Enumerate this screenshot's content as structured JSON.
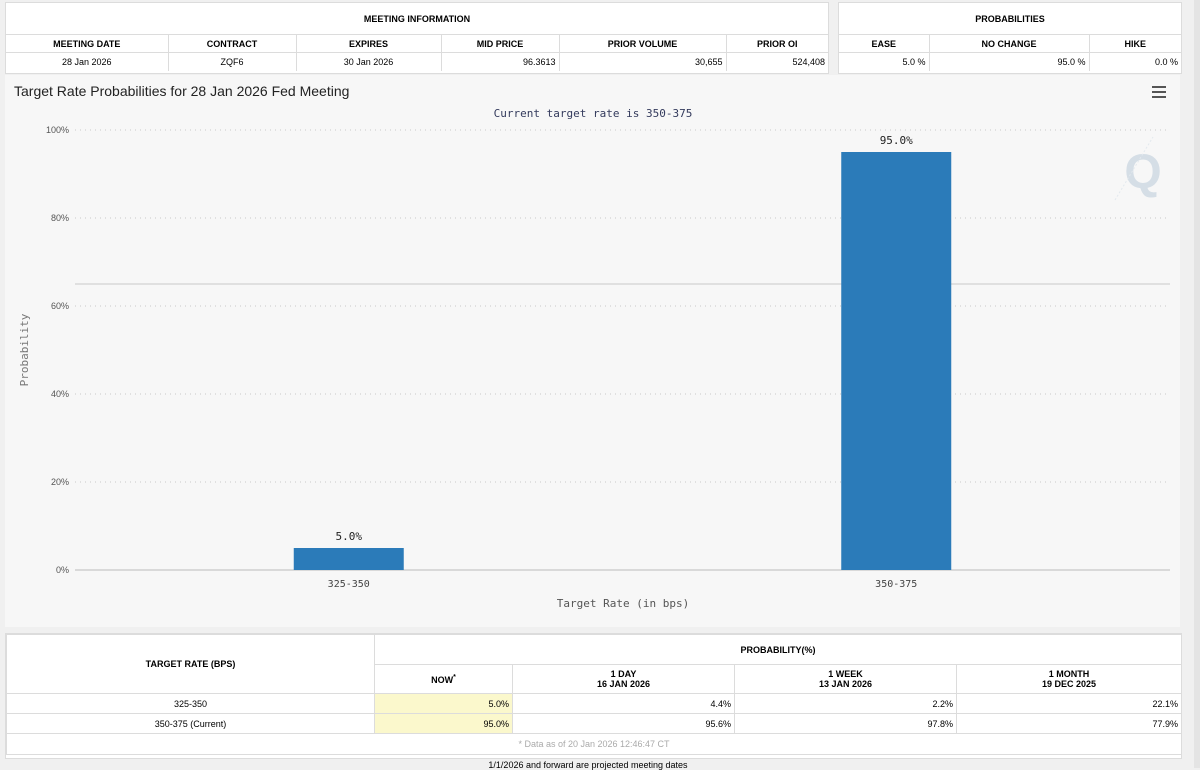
{
  "meeting": {
    "group_header": "MEETING INFORMATION",
    "columns": [
      "MEETING DATE",
      "CONTRACT",
      "EXPIRES",
      "MID PRICE",
      "PRIOR VOLUME",
      "PRIOR OI"
    ],
    "row": [
      "28 Jan 2026",
      "ZQF6",
      "30 Jan 2026",
      "96.3613",
      "30,655",
      "524,408"
    ]
  },
  "probabilities": {
    "group_header": "PROBABILITIES",
    "columns": [
      "EASE",
      "NO CHANGE",
      "HIKE"
    ],
    "row": [
      "5.0 %",
      "95.0 %",
      "0.0 %"
    ]
  },
  "chart_data": {
    "type": "bar",
    "title": "Target Rate Probabilities for 28 Jan 2026 Fed Meeting",
    "subtitle": "Current target rate is 350-375",
    "xlabel": "Target Rate (in bps)",
    "ylabel": "Probability",
    "categories": [
      "325-350",
      "350-375"
    ],
    "values": [
      5.0,
      95.0
    ],
    "data_labels": [
      "5.0%",
      "95.0%"
    ],
    "ylim": [
      0,
      100
    ],
    "yticks": [
      0,
      20,
      40,
      60,
      80,
      100
    ],
    "ytick_labels": [
      "0%",
      "20%",
      "40%",
      "60%",
      "80%",
      "100%"
    ],
    "reference_line": 65,
    "bar_color": "#2b7bb9",
    "grid": "dotted horizontal",
    "watermark": "Q"
  },
  "bottom_table": {
    "target_header": "TARGET RATE (BPS)",
    "prob_header": "PROBABILITY(%)",
    "now_label": "NOW",
    "now_marker": "*",
    "periods": [
      {
        "label": "1 DAY",
        "date": "16 JAN 2026"
      },
      {
        "label": "1 WEEK",
        "date": "13 JAN 2026"
      },
      {
        "label": "1 MONTH",
        "date": "19 DEC 2025"
      }
    ],
    "rows": [
      {
        "rate": "325-350",
        "now": "5.0%",
        "day": "4.4%",
        "week": "2.2%",
        "month": "22.1%"
      },
      {
        "rate": "350-375 (Current)",
        "now": "95.0%",
        "day": "95.6%",
        "week": "97.8%",
        "month": "77.9%"
      }
    ],
    "footnote": "* Data as of 20 Jan 2026 12:46:47 CT"
  },
  "footer_note": "1/1/2026 and forward are projected meeting dates"
}
